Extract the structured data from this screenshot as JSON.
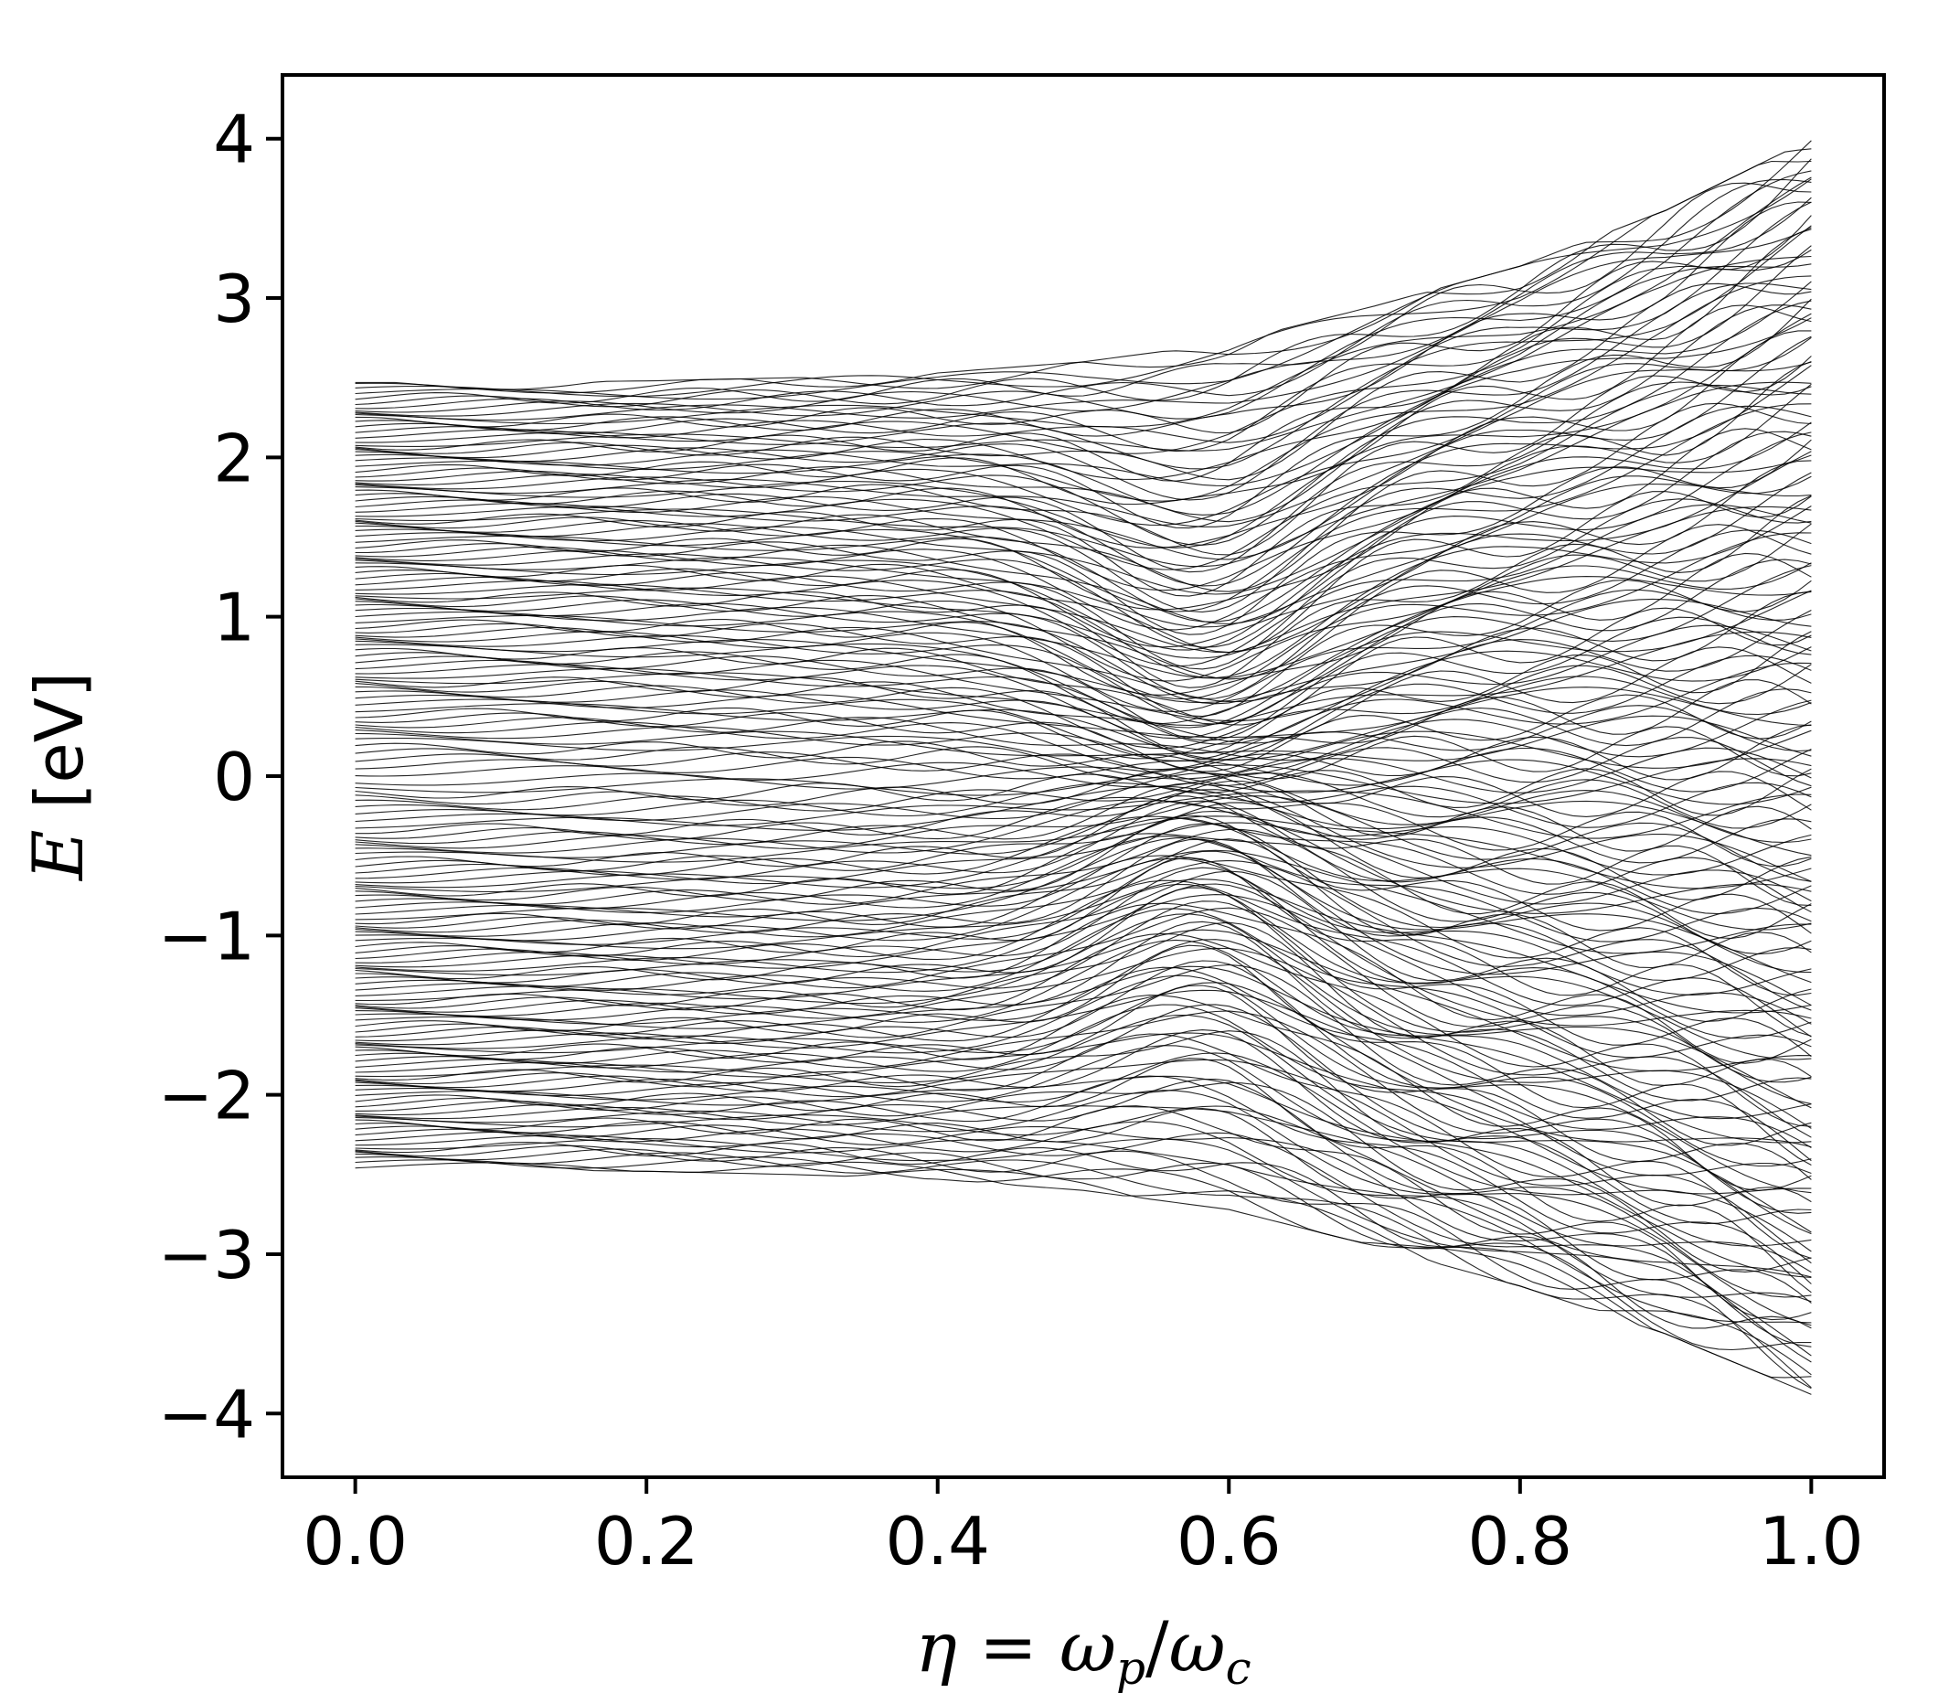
{
  "chart_data": {
    "type": "line",
    "title": "",
    "xlabel": "η = ωp/ωc",
    "xlabel_parts": {
      "lhs": "η",
      "eq": " = ",
      "num": "ω",
      "num_sub": "p",
      "slash": "/",
      "den": "ω",
      "den_sub": "c"
    },
    "ylabel": "E [eV]",
    "ylabel_parts": {
      "symbol": "E",
      "unit": " [eV]"
    },
    "xlim": [
      -0.05,
      1.05
    ],
    "ylim": [
      -4.4,
      4.4
    ],
    "x_ticks": [
      0.0,
      0.2,
      0.4,
      0.6,
      0.8,
      1.0
    ],
    "x_tick_labels": [
      "0.0",
      "0.2",
      "0.4",
      "0.6",
      "0.8",
      "1.0"
    ],
    "y_ticks": [
      4,
      3,
      2,
      1,
      0,
      -1,
      -2,
      -3,
      -4
    ],
    "y_tick_labels": [
      "4",
      "3",
      "2",
      "1",
      "0",
      "−1",
      "−2",
      "−3",
      "−4"
    ],
    "grid": false,
    "legend": "none",
    "line_color": "#000000",
    "description_of_series": "dense family of energy levels E(η) for η from 0.0 to 1.0",
    "envelope": {
      "x": [
        0.0,
        0.1,
        0.2,
        0.3,
        0.4,
        0.5,
        0.6,
        0.7,
        0.8,
        0.9,
        1.0
      ],
      "upper": [
        2.47,
        2.47,
        2.48,
        2.5,
        2.53,
        2.6,
        2.72,
        2.95,
        3.2,
        3.55,
        4.0
      ],
      "lower": [
        -2.47,
        -2.47,
        -2.48,
        -2.5,
        -2.53,
        -2.6,
        -2.72,
        -2.95,
        -3.2,
        -3.5,
        -3.88
      ]
    }
  }
}
